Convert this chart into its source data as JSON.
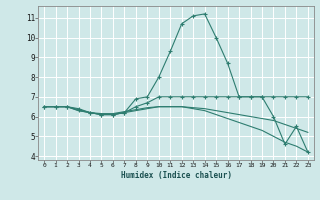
{
  "xlabel": "Humidex (Indice chaleur)",
  "bg_color": "#cfe8e8",
  "grid_color": "#ffffff",
  "line_color": "#2e7d70",
  "xlim": [
    -0.5,
    23.5
  ],
  "ylim": [
    3.8,
    11.6
  ],
  "yticks": [
    4,
    5,
    6,
    7,
    8,
    9,
    10,
    11
  ],
  "xticks": [
    0,
    1,
    2,
    3,
    4,
    5,
    6,
    7,
    8,
    9,
    10,
    11,
    12,
    13,
    14,
    15,
    16,
    17,
    18,
    19,
    20,
    21,
    22,
    23
  ],
  "lines": [
    {
      "x": [
        0,
        1,
        2,
        3,
        4,
        5,
        6,
        7,
        8,
        9,
        10,
        11,
        12,
        13,
        14,
        15,
        16,
        17,
        18,
        19,
        20,
        21,
        22,
        23
      ],
      "y": [
        6.5,
        6.5,
        6.5,
        6.4,
        6.2,
        6.1,
        6.1,
        6.2,
        6.9,
        7.0,
        8.0,
        9.3,
        10.7,
        11.1,
        11.2,
        10.0,
        8.7,
        7.0,
        7.0,
        7.0,
        7.0,
        7.0,
        7.0,
        7.0
      ],
      "has_markers": true
    },
    {
      "x": [
        0,
        1,
        2,
        3,
        4,
        5,
        6,
        7,
        8,
        9,
        10,
        11,
        12,
        13,
        14,
        15,
        16,
        17,
        18,
        19,
        20,
        21,
        22,
        23
      ],
      "y": [
        6.5,
        6.5,
        6.5,
        6.35,
        6.2,
        6.1,
        6.1,
        6.2,
        6.5,
        6.7,
        7.0,
        7.0,
        7.0,
        7.0,
        7.0,
        7.0,
        7.0,
        7.0,
        7.0,
        7.0,
        6.0,
        4.6,
        5.5,
        4.2
      ],
      "has_markers": true
    },
    {
      "x": [
        0,
        1,
        2,
        3,
        4,
        5,
        6,
        7,
        8,
        9,
        10,
        11,
        12,
        13,
        14,
        15,
        16,
        17,
        18,
        19,
        20,
        21,
        22,
        23
      ],
      "y": [
        6.5,
        6.5,
        6.5,
        6.3,
        6.2,
        6.15,
        6.15,
        6.25,
        6.35,
        6.45,
        6.5,
        6.5,
        6.5,
        6.4,
        6.3,
        6.1,
        5.9,
        5.7,
        5.5,
        5.3,
        5.0,
        4.7,
        4.5,
        4.2
      ],
      "has_markers": false
    },
    {
      "x": [
        0,
        1,
        2,
        3,
        4,
        5,
        6,
        7,
        8,
        9,
        10,
        11,
        12,
        13,
        14,
        15,
        16,
        17,
        18,
        19,
        20,
        21,
        22,
        23
      ],
      "y": [
        6.5,
        6.5,
        6.5,
        6.3,
        6.2,
        6.1,
        6.1,
        6.2,
        6.3,
        6.4,
        6.5,
        6.5,
        6.5,
        6.45,
        6.4,
        6.3,
        6.2,
        6.1,
        6.0,
        5.9,
        5.8,
        5.6,
        5.4,
        5.2
      ],
      "has_markers": false
    }
  ]
}
